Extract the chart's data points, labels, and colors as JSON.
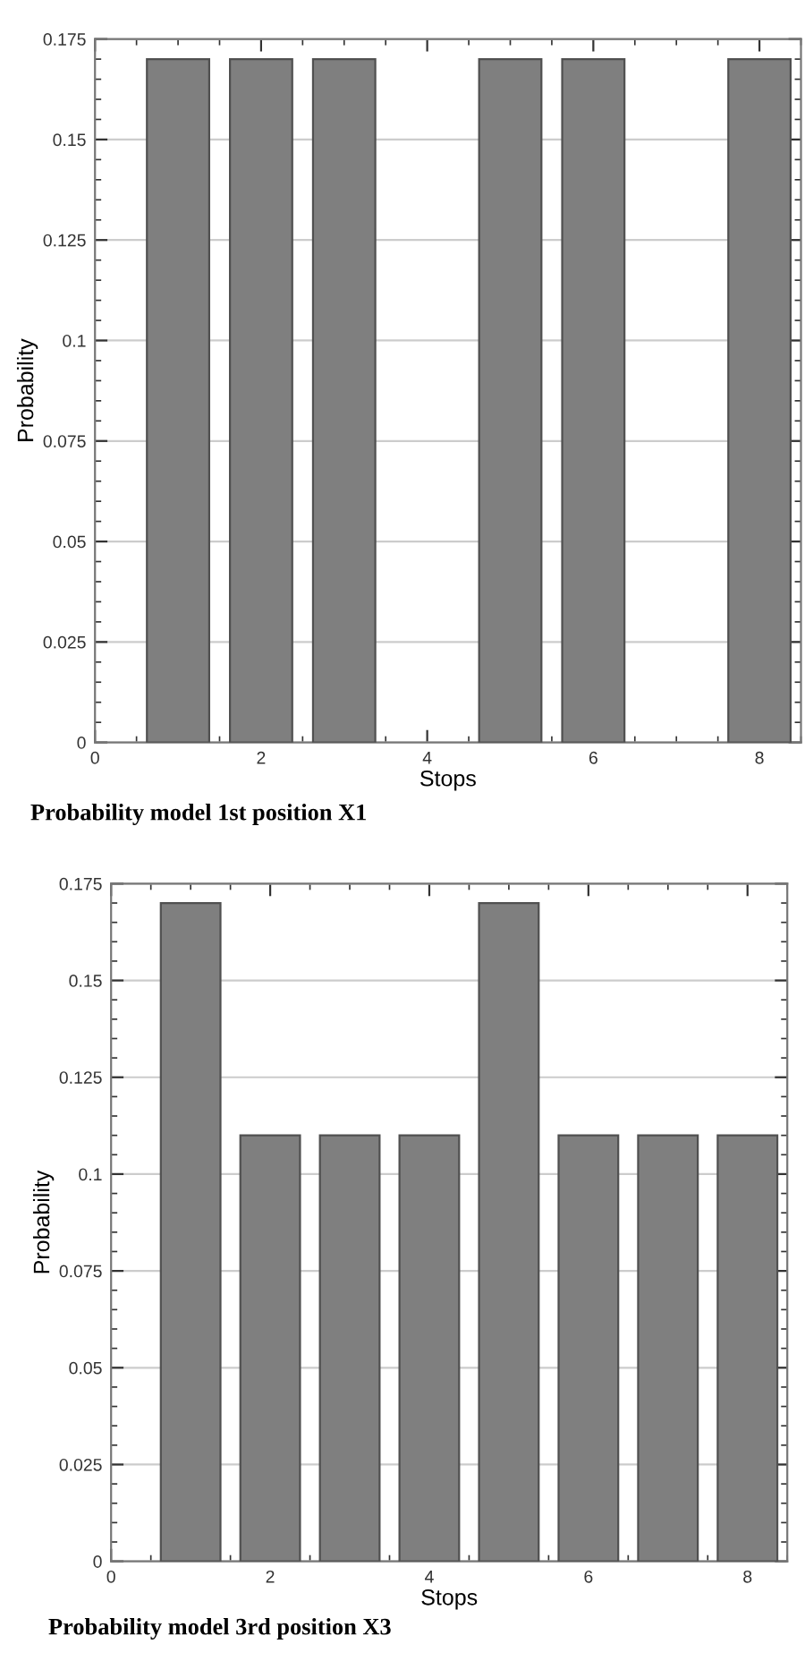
{
  "chart_data": [
    {
      "type": "bar",
      "x": [
        1,
        2,
        3,
        5,
        6,
        8
      ],
      "values": [
        0.17,
        0.17,
        0.17,
        0.17,
        0.17,
        0.17
      ],
      "color": "#7f7f7f",
      "xlabel": "Stops",
      "ylabel": "Probability",
      "xlim": [
        0,
        8.5
      ],
      "xticks": [
        0,
        2,
        4,
        6,
        8
      ],
      "ylim": [
        0,
        0.175
      ],
      "yticks": [
        0,
        0.025,
        0.05,
        0.075,
        0.1,
        0.125,
        0.15,
        0.175
      ],
      "grid": "y",
      "annotations": [
        "Probability model 1st position X1"
      ]
    },
    {
      "type": "bar",
      "x": [
        1,
        2,
        3,
        4,
        5,
        6,
        7,
        8
      ],
      "values": [
        0.17,
        0.11,
        0.11,
        0.11,
        0.17,
        0.11,
        0.11,
        0.11
      ],
      "color": "#7f7f7f",
      "xlabel": "Stops",
      "ylabel": "Probability",
      "xlim": [
        0,
        8.5
      ],
      "xticks": [
        0,
        2,
        4,
        6,
        8
      ],
      "ylim": [
        0,
        0.175
      ],
      "yticks": [
        0,
        0.025,
        0.05,
        0.075,
        0.1,
        0.125,
        0.15,
        0.175
      ],
      "grid": "y",
      "annotations": [
        "Probability model 3rd position X3"
      ]
    }
  ]
}
